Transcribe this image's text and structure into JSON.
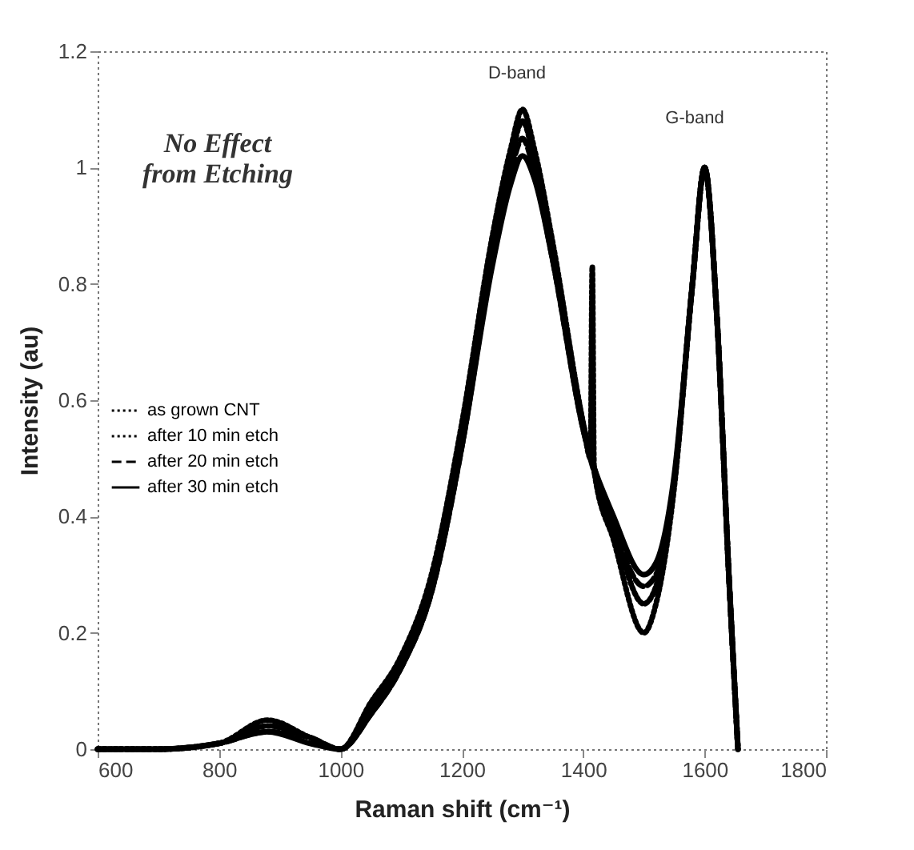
{
  "chart_data": {
    "type": "line",
    "xlabel": "Raman shift (cm⁻¹)",
    "ylabel": "Intensity (au)",
    "xlim": [
      600,
      1800
    ],
    "xticks": [
      600,
      800,
      1000,
      1200,
      1400,
      1600,
      1800
    ],
    "ylim": [
      0,
      1.2
    ],
    "yticks": [
      0,
      0.2,
      0.4,
      0.6,
      0.8,
      1,
      1.2
    ],
    "grid": false,
    "legend": "left",
    "marker": "none",
    "annotations": [
      "No Effect\nfrom Etching",
      "D-band",
      "G-band"
    ],
    "series": [
      {
        "name": "as grown CNT",
        "color": "#000000",
        "line_style": "dotted",
        "x": [
          600,
          700,
          800,
          880,
          950,
          1000,
          1050,
          1100,
          1150,
          1200,
          1250,
          1280,
          1300,
          1320,
          1350,
          1400,
          1412,
          1415,
          1418,
          1450,
          1500,
          1520,
          1550,
          1580,
          1600,
          1620,
          1640,
          1655
        ],
        "values": [
          0,
          0,
          0.01,
          0.05,
          0.02,
          0,
          0.08,
          0.16,
          0.3,
          0.56,
          0.88,
          1.03,
          1.1,
          1.03,
          0.87,
          0.56,
          0.5,
          0.83,
          0.48,
          0.36,
          0.2,
          0.25,
          0.45,
          0.8,
          1,
          0.75,
          0.3,
          0
        ]
      },
      {
        "name": "after 10 min etch",
        "color": "#000000",
        "line_style": "dotted",
        "x": [
          600,
          700,
          800,
          880,
          950,
          1000,
          1050,
          1100,
          1150,
          1200,
          1250,
          1280,
          1300,
          1320,
          1350,
          1400,
          1450,
          1500,
          1520,
          1550,
          1580,
          1600,
          1620,
          1640,
          1655
        ],
        "values": [
          0,
          0,
          0.01,
          0.04,
          0.02,
          0,
          0.07,
          0.15,
          0.28,
          0.54,
          0.86,
          1.01,
          1.08,
          1.01,
          0.86,
          0.56,
          0.38,
          0.25,
          0.28,
          0.46,
          0.8,
          1,
          0.75,
          0.3,
          0
        ]
      },
      {
        "name": "after 20 min etch",
        "color": "#000000",
        "line_style": "dashed",
        "x": [
          600,
          700,
          800,
          880,
          950,
          1000,
          1050,
          1100,
          1150,
          1200,
          1250,
          1280,
          1300,
          1320,
          1350,
          1400,
          1450,
          1500,
          1520,
          1550,
          1580,
          1600,
          1620,
          1640,
          1655
        ],
        "values": [
          0,
          0,
          0.01,
          0.03,
          0.02,
          0,
          0.06,
          0.14,
          0.27,
          0.52,
          0.84,
          0.99,
          1.05,
          0.99,
          0.84,
          0.55,
          0.38,
          0.28,
          0.3,
          0.46,
          0.8,
          1,
          0.75,
          0.3,
          0
        ]
      },
      {
        "name": "after 30 min etch",
        "color": "#000000",
        "line_style": "solid",
        "x": [
          600,
          700,
          800,
          880,
          950,
          1000,
          1050,
          1100,
          1150,
          1200,
          1250,
          1280,
          1300,
          1320,
          1350,
          1400,
          1450,
          1500,
          1520,
          1550,
          1580,
          1600,
          1620,
          1640,
          1655
        ],
        "values": [
          0,
          0,
          0.01,
          0.03,
          0.01,
          0,
          0.06,
          0.14,
          0.27,
          0.52,
          0.83,
          0.97,
          1.02,
          0.98,
          0.84,
          0.55,
          0.4,
          0.3,
          0.32,
          0.47,
          0.8,
          1,
          0.75,
          0.3,
          0
        ]
      }
    ]
  }
}
